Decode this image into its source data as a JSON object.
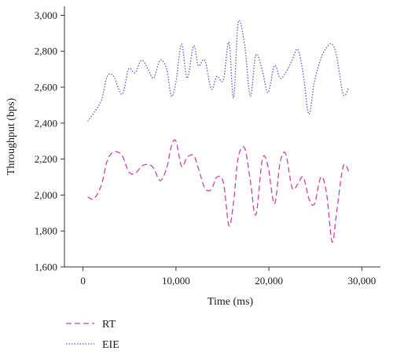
{
  "chart_data": {
    "type": "line",
    "xlabel": "Time (ms)",
    "ylabel": "Throughput (bps)",
    "xlim": [
      -2000,
      32000
    ],
    "ylim": [
      1600,
      3050
    ],
    "x_ticks": [
      0,
      10000,
      20000,
      30000
    ],
    "x_tick_labels": [
      "0",
      "10,000",
      "20,000",
      "30,000"
    ],
    "y_ticks": [
      1600,
      1800,
      2000,
      2200,
      2400,
      2600,
      2800,
      3000
    ],
    "y_tick_labels": [
      "1,600",
      "1,800",
      "2,000",
      "2,200",
      "2,400",
      "2,600",
      "2,800",
      "3,000"
    ],
    "grid": false,
    "legend_position": "bottom-left",
    "series": [
      {
        "name": "RT",
        "color": "#cc3fa6",
        "style": "dashed",
        "x": [
          500,
          1200,
          2000,
          2600,
          3300,
          4200,
          4900,
          5600,
          6300,
          7000,
          7600,
          8300,
          9000,
          9500,
          10000,
          10600,
          11200,
          11900,
          12400,
          13100,
          13800,
          14400,
          15100,
          15700,
          16200,
          16700,
          17400,
          18000,
          18600,
          19300,
          19900,
          20600,
          21200,
          21800,
          22500,
          23100,
          23700,
          24300,
          24900,
          25600,
          26200,
          26800,
          27300,
          28000,
          28600
        ],
        "values": [
          1990,
          1980,
          2060,
          2190,
          2240,
          2220,
          2130,
          2120,
          2160,
          2170,
          2150,
          2080,
          2150,
          2270,
          2300,
          2160,
          2210,
          2220,
          2150,
          2040,
          2030,
          2100,
          2070,
          1830,
          1960,
          2210,
          2260,
          2080,
          1890,
          2200,
          2160,
          1950,
          2180,
          2230,
          2040,
          2060,
          2100,
          1980,
          1950,
          2100,
          2010,
          1740,
          1910,
          2160,
          2130
        ]
      },
      {
        "name": "EIE",
        "color": "#5a55c7",
        "style": "dotted",
        "x": [
          500,
          1200,
          2000,
          2600,
          3300,
          4200,
          4900,
          5600,
          6300,
          7000,
          7600,
          8300,
          9000,
          9500,
          10000,
          10600,
          11200,
          11900,
          12400,
          13100,
          13800,
          14400,
          15100,
          15700,
          16200,
          16700,
          17400,
          18000,
          18600,
          19300,
          19900,
          20600,
          21200,
          21800,
          22500,
          23100,
          23700,
          24300,
          24900,
          25600,
          26200,
          26800,
          27300,
          28000,
          28600
        ],
        "values": [
          2410,
          2460,
          2530,
          2660,
          2660,
          2560,
          2700,
          2680,
          2750,
          2700,
          2650,
          2750,
          2700,
          2550,
          2630,
          2840,
          2650,
          2830,
          2720,
          2750,
          2590,
          2660,
          2640,
          2850,
          2540,
          2960,
          2830,
          2550,
          2780,
          2690,
          2570,
          2720,
          2650,
          2680,
          2750,
          2810,
          2670,
          2450,
          2630,
          2760,
          2820,
          2840,
          2770,
          2560,
          2600
        ]
      }
    ]
  }
}
